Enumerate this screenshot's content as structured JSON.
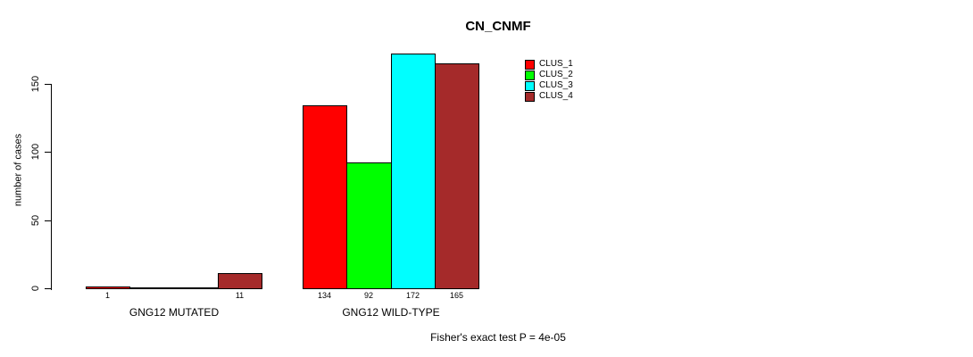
{
  "title": "CN_CNMF",
  "y_axis_title": "number of cases",
  "annotation": "Fisher's exact test P = 4e-05",
  "chart_data": {
    "type": "bar",
    "title": "CN_CNMF",
    "xlabel": "",
    "ylabel": "number of cases",
    "categories": [
      "GNG12 MUTATED",
      "GNG12 WILD-TYPE"
    ],
    "series": [
      {
        "name": "CLUS_1",
        "color": "#FF0000",
        "values": [
          1,
          134
        ]
      },
      {
        "name": "CLUS_2",
        "color": "#00FF00",
        "values": [
          0,
          92
        ]
      },
      {
        "name": "CLUS_3",
        "color": "#00FFFF",
        "values": [
          0,
          172
        ]
      },
      {
        "name": "CLUS_4",
        "color": "#A52A2A",
        "values": [
          11,
          165
        ]
      }
    ],
    "bar_labels": [
      [
        "1",
        "",
        "",
        "11"
      ],
      [
        "134",
        "92",
        "172",
        "165"
      ]
    ],
    "yticks": [
      0,
      50,
      100,
      150
    ],
    "ylim": [
      0,
      177
    ],
    "grid": false,
    "legend_position": "top-right",
    "legend_entries": [
      "CLUS_1",
      "CLUS_2",
      "CLUS_3",
      "CLUS_4"
    ],
    "annotation": "Fisher's exact test P = 4e-05",
    "axis_color": "#000000",
    "bar_border_color": "#000000"
  }
}
